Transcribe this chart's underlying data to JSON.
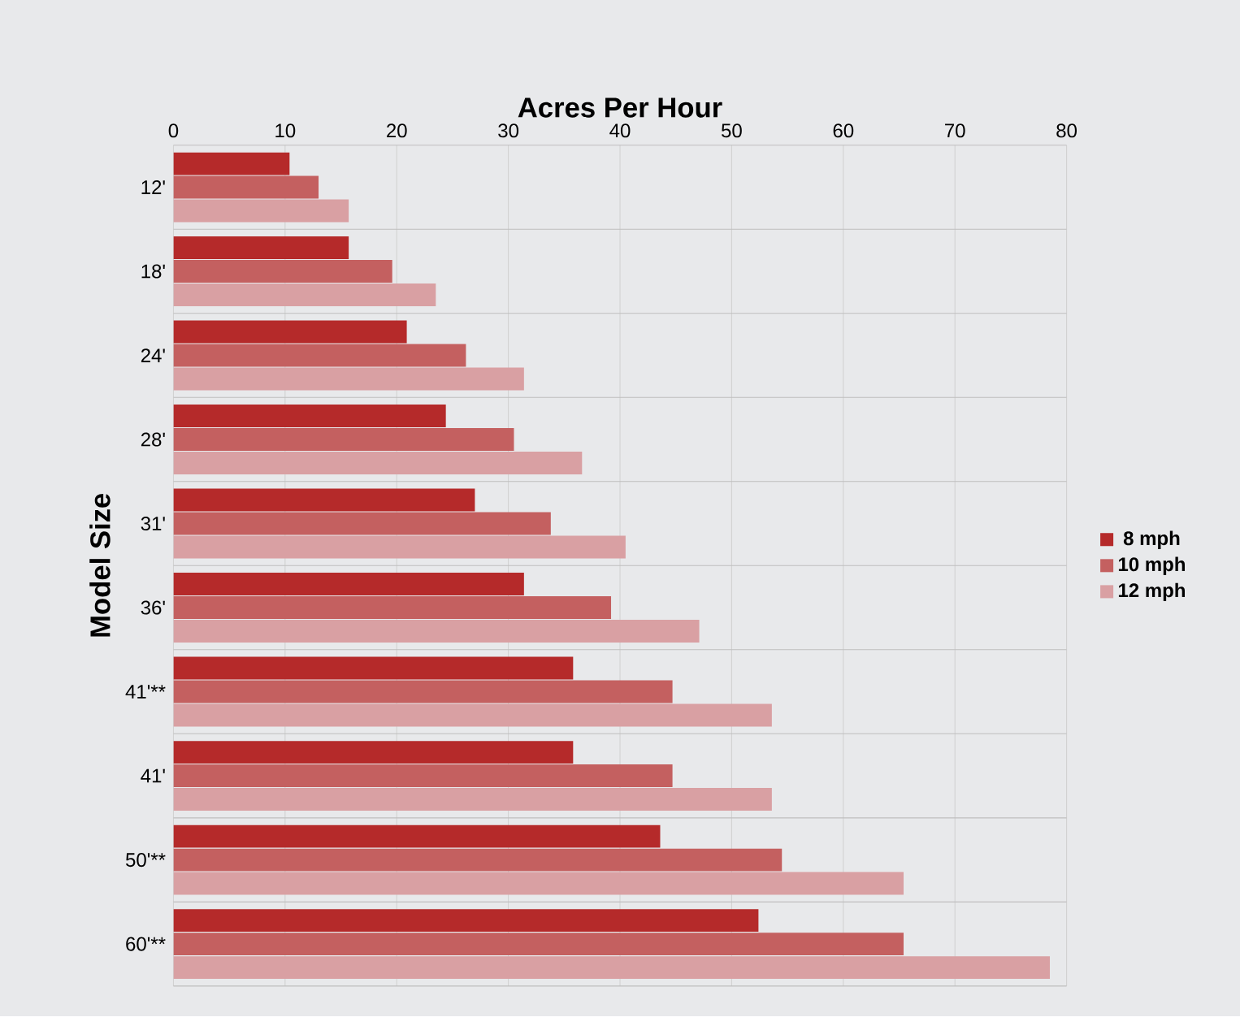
{
  "chart_data": {
    "type": "bar",
    "orientation": "horizontal",
    "xlabel": "Acres Per Hour",
    "ylabel": "Model Size",
    "categories": [
      "12'",
      "18'",
      "24'",
      "28'",
      "31'",
      "36'",
      "41'**",
      "41'",
      "50'**",
      "60'**"
    ],
    "series": [
      {
        "name": "8 mph",
        "color": "#b52a2a",
        "values": [
          10.4,
          15.7,
          20.9,
          24.4,
          27.0,
          31.4,
          35.8,
          35.8,
          43.6,
          52.4
        ]
      },
      {
        "name": "10 mph",
        "color": "#c46060",
        "values": [
          13.0,
          19.6,
          26.2,
          30.5,
          33.8,
          39.2,
          44.7,
          44.7,
          54.5,
          65.4
        ]
      },
      {
        "name": "12 mph",
        "color": "#d9a0a3",
        "values": [
          15.7,
          23.5,
          31.4,
          36.6,
          40.5,
          47.1,
          53.6,
          53.6,
          65.4,
          78.5
        ]
      }
    ],
    "xlim": [
      0,
      80
    ],
    "xticks": [
      0,
      10,
      20,
      30,
      40,
      50,
      60,
      70,
      80
    ],
    "grid": true,
    "legend": "right"
  }
}
